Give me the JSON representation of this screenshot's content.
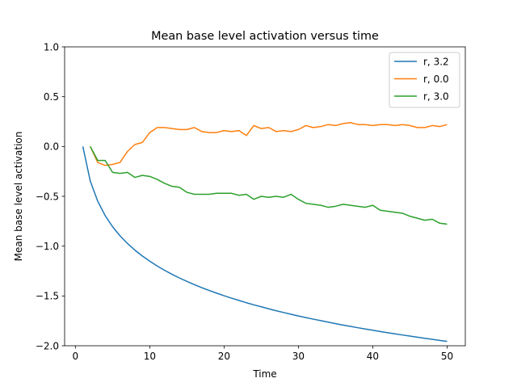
{
  "chart_data": {
    "type": "line",
    "title": "Mean base level activation versus time",
    "xlabel": "Time",
    "ylabel": "Mean base level activation",
    "xlim": [
      -1.45,
      52.45
    ],
    "ylim": [
      -2.0,
      1.0
    ],
    "x_ticks": [
      0,
      10,
      20,
      30,
      40,
      50
    ],
    "y_ticks": [
      1.0,
      0.5,
      0.0,
      -0.5,
      -1.0,
      -1.5,
      -2.0
    ],
    "x_tick_labels": [
      "0",
      "10",
      "20",
      "30",
      "40",
      "50"
    ],
    "y_tick_labels": [
      "1.0",
      "0.5",
      "0.0",
      "−0.5",
      "−1.0",
      "−1.5",
      "−2.0"
    ],
    "grid": false,
    "legend_position": "top-right",
    "series": [
      {
        "name": "r, 3.2",
        "color": "#1f77b4",
        "x": [
          1,
          2,
          3,
          4,
          5,
          6,
          7,
          8,
          9,
          10,
          11,
          12,
          13,
          14,
          15,
          16,
          17,
          18,
          19,
          20,
          21,
          22,
          23,
          24,
          25,
          26,
          27,
          28,
          29,
          30,
          31,
          32,
          33,
          34,
          35,
          36,
          37,
          38,
          39,
          40,
          41,
          42,
          43,
          44,
          45,
          46,
          47,
          48,
          49,
          50
        ],
        "y": [
          0.0,
          -0.347,
          -0.549,
          -0.693,
          -0.805,
          -0.896,
          -0.973,
          -1.04,
          -1.099,
          -1.151,
          -1.199,
          -1.243,
          -1.283,
          -1.32,
          -1.354,
          -1.386,
          -1.417,
          -1.445,
          -1.472,
          -1.498,
          -1.522,
          -1.545,
          -1.568,
          -1.589,
          -1.609,
          -1.629,
          -1.648,
          -1.666,
          -1.684,
          -1.701,
          -1.717,
          -1.733,
          -1.748,
          -1.763,
          -1.778,
          -1.792,
          -1.805,
          -1.819,
          -1.832,
          -1.844,
          -1.857,
          -1.869,
          -1.88,
          -1.892,
          -1.903,
          -1.914,
          -1.925,
          -1.935,
          -1.946,
          -1.956
        ]
      },
      {
        "name": "r, 0.0",
        "color": "#ff7f0e",
        "x": [
          2,
          3,
          4,
          5,
          6,
          7,
          8,
          9,
          10,
          11,
          12,
          13,
          14,
          15,
          16,
          17,
          18,
          19,
          20,
          21,
          22,
          23,
          24,
          25,
          26,
          27,
          28,
          29,
          30,
          31,
          32,
          33,
          34,
          35,
          36,
          37,
          38,
          39,
          40,
          41,
          42,
          43,
          44,
          45,
          46,
          47,
          48,
          49,
          50
        ],
        "y": [
          0.0,
          -0.16,
          -0.19,
          -0.18,
          -0.16,
          -0.05,
          0.02,
          0.04,
          0.14,
          0.19,
          0.19,
          0.18,
          0.17,
          0.17,
          0.19,
          0.15,
          0.14,
          0.14,
          0.16,
          0.15,
          0.16,
          0.11,
          0.21,
          0.18,
          0.19,
          0.15,
          0.16,
          0.15,
          0.17,
          0.21,
          0.19,
          0.2,
          0.22,
          0.21,
          0.23,
          0.24,
          0.22,
          0.22,
          0.21,
          0.22,
          0.22,
          0.21,
          0.22,
          0.21,
          0.19,
          0.19,
          0.21,
          0.2,
          0.22
        ]
      },
      {
        "name": "r, 3.0",
        "color": "#2ca02c",
        "x": [
          2,
          3,
          4,
          5,
          6,
          7,
          8,
          9,
          10,
          11,
          12,
          13,
          14,
          15,
          16,
          17,
          18,
          19,
          20,
          21,
          22,
          23,
          24,
          25,
          26,
          27,
          28,
          29,
          30,
          31,
          32,
          33,
          34,
          35,
          36,
          37,
          38,
          39,
          40,
          41,
          42,
          43,
          44,
          45,
          46,
          47,
          48,
          49,
          50
        ],
        "y": [
          0.0,
          -0.14,
          -0.14,
          -0.26,
          -0.27,
          -0.26,
          -0.31,
          -0.29,
          -0.3,
          -0.33,
          -0.37,
          -0.4,
          -0.41,
          -0.46,
          -0.48,
          -0.48,
          -0.48,
          -0.47,
          -0.47,
          -0.47,
          -0.49,
          -0.48,
          -0.53,
          -0.5,
          -0.51,
          -0.5,
          -0.51,
          -0.48,
          -0.53,
          -0.57,
          -0.58,
          -0.59,
          -0.61,
          -0.6,
          -0.58,
          -0.59,
          -0.6,
          -0.61,
          -0.59,
          -0.64,
          -0.65,
          -0.66,
          -0.67,
          -0.7,
          -0.72,
          -0.74,
          -0.73,
          -0.77,
          -0.78
        ]
      }
    ]
  }
}
